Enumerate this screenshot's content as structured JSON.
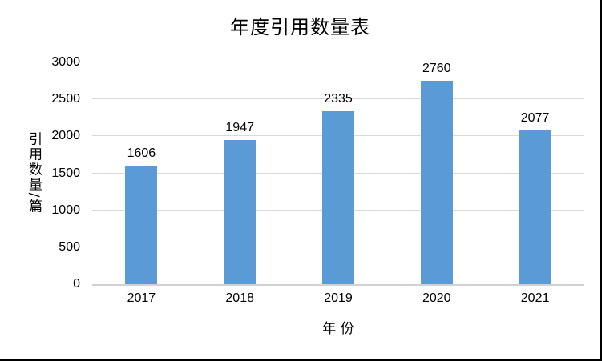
{
  "chart_data": {
    "type": "bar",
    "title": "年度引用数量表",
    "categories": [
      "2017",
      "2018",
      "2019",
      "2020",
      "2021"
    ],
    "values": [
      1606,
      1947,
      2335,
      2760,
      2077
    ],
    "xlabel": "年 份",
    "ylabel": "引用数量/篇",
    "ylim": [
      0,
      3000
    ],
    "yticks": [
      0,
      500,
      1000,
      1500,
      2000,
      2500,
      3000
    ],
    "grid": true,
    "legend_position": "none",
    "data_labels_shown": true,
    "bar_color": "#5b9bd5",
    "gridline_color": "#d9d9d9",
    "axis_line_color": "#d2d0d0",
    "text_color": "#000000",
    "background_color": "#ffffff"
  }
}
